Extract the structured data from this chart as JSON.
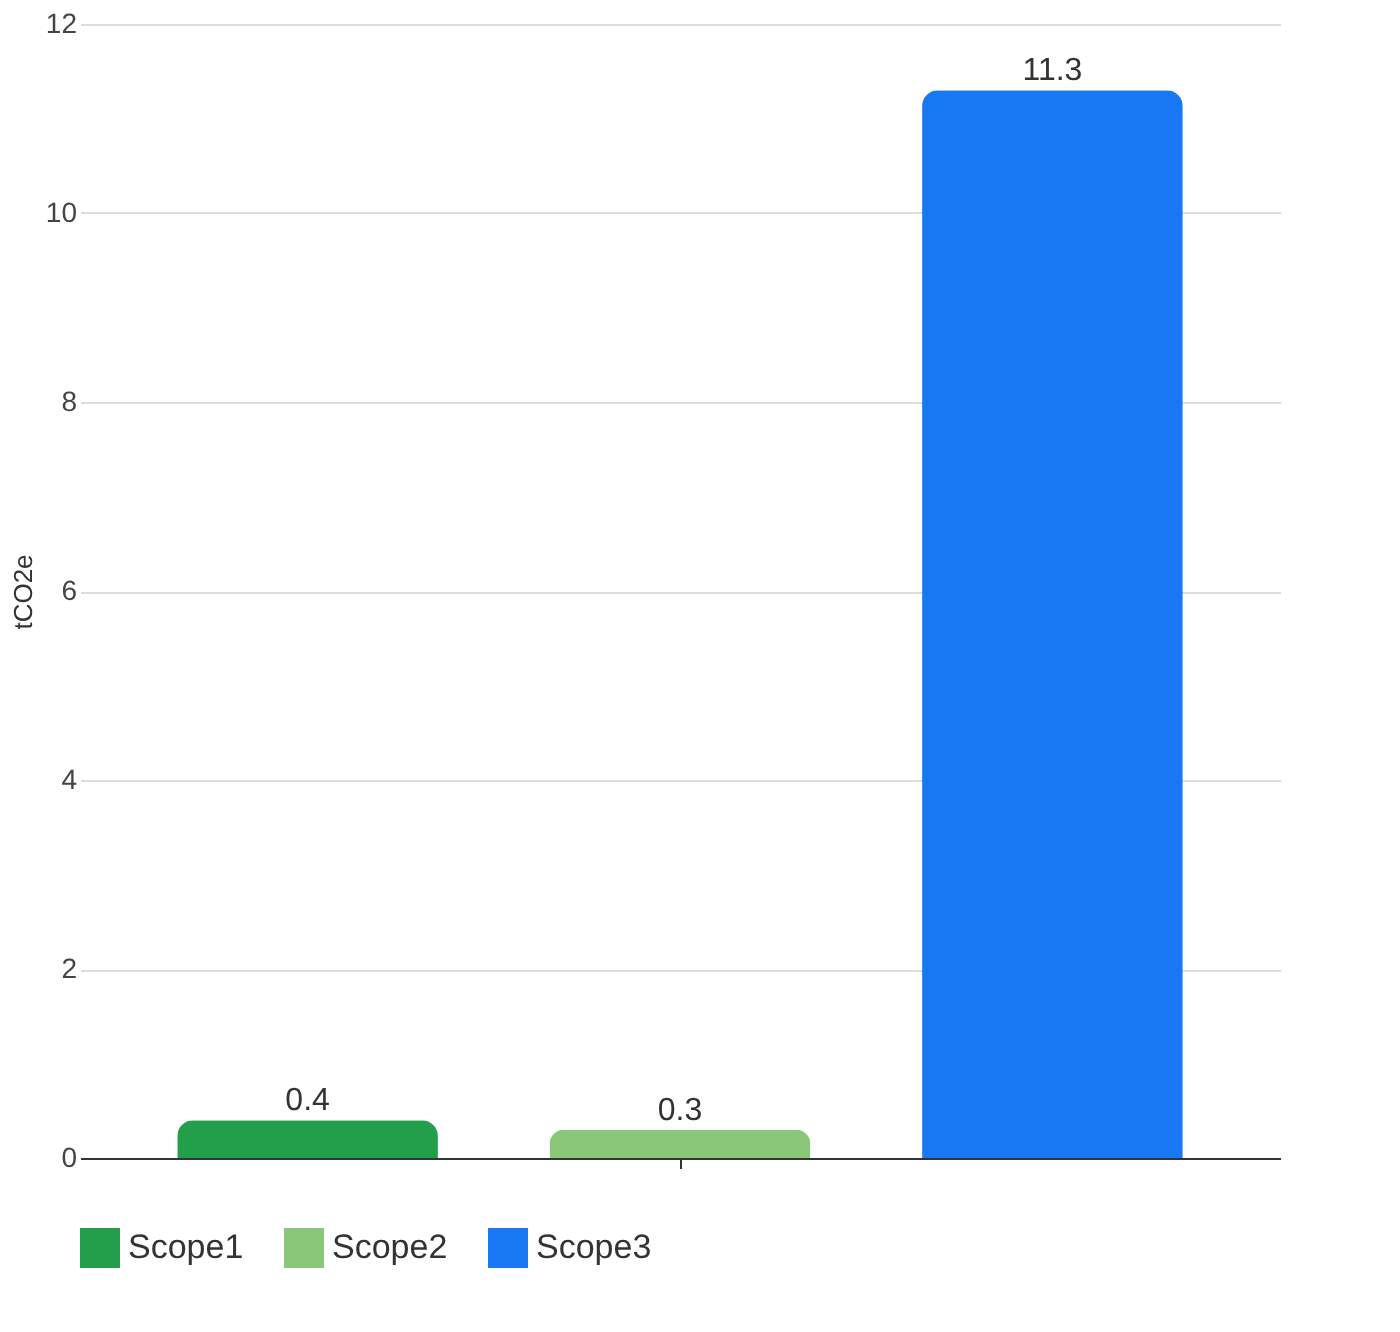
{
  "chart_data": {
    "type": "bar",
    "ylabel": "tCO2e",
    "categories": [
      null
    ],
    "series": [
      {
        "name": "Scope1",
        "color": "#239f4b",
        "values": [
          0.4
        ]
      },
      {
        "name": "Scope2",
        "color": "#88c777",
        "values": [
          0.3
        ]
      },
      {
        "name": "Scope3",
        "color": "#1877f2",
        "values": [
          11.3
        ]
      }
    ],
    "ylim": [
      0,
      12
    ],
    "yticks": [
      0,
      2,
      4,
      6,
      8,
      10,
      12
    ],
    "grid": "y",
    "legend": "bottom",
    "data_labels": true
  }
}
